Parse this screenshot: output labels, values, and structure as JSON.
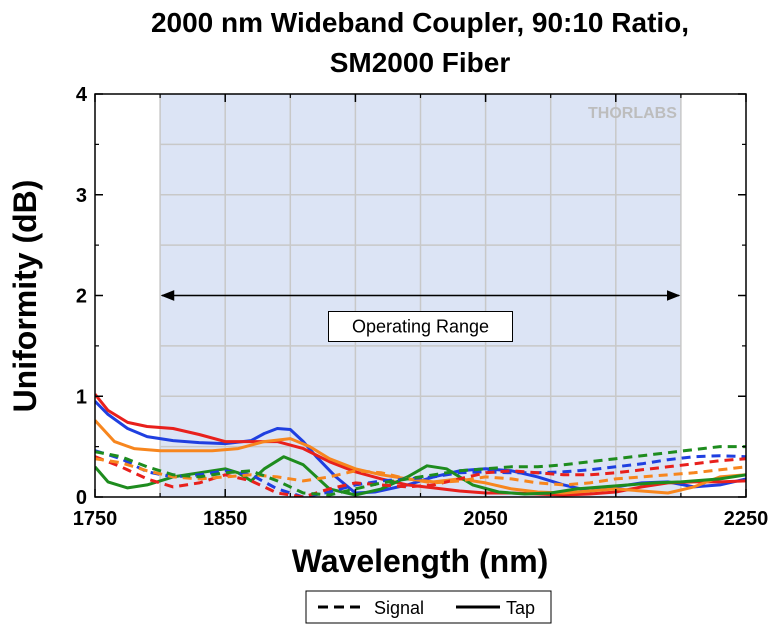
{
  "chart_data": {
    "type": "line",
    "title_lines": [
      "2000 nm Wideband Coupler, 90:10 Ratio,",
      "SM2000 Fiber"
    ],
    "xlabel": "Wavelength (nm)",
    "ylabel": "Uniformity (dB)",
    "xlim": [
      1750,
      2250
    ],
    "ylim": [
      0,
      4
    ],
    "xticks": [
      1750,
      1850,
      1950,
      2050,
      2150,
      2250
    ],
    "yticks": [
      0,
      1,
      2,
      3,
      4
    ],
    "grid": true,
    "watermark": "THORLABS",
    "operating_range": {
      "x": [
        1800,
        2200
      ],
      "label": "Operating Range",
      "arrow_y": 2.0
    },
    "legend": {
      "placement": "bottom-center",
      "entries": [
        {
          "label": "Signal",
          "style": "dashed"
        },
        {
          "label": "Tap",
          "style": "solid"
        }
      ]
    },
    "colors": {
      "shade": "#dce4f5",
      "grid": "#c8c8c8",
      "blue": "#1f3fe0",
      "red": "#e8201c",
      "orange": "#f7861e",
      "green": "#1e8c1e"
    },
    "series": [
      {
        "color": "blue",
        "style": "solid",
        "x": [
          1750,
          1760,
          1775,
          1790,
          1810,
          1830,
          1850,
          1870,
          1880,
          1890,
          1900,
          1910,
          1920,
          1935,
          1950,
          1965,
          1990,
          2010,
          2030,
          2050,
          2070,
          2090,
          2110,
          2130,
          2150,
          2170,
          2190,
          2210,
          2230,
          2250
        ],
        "y": [
          0.95,
          0.82,
          0.68,
          0.6,
          0.56,
          0.54,
          0.53,
          0.56,
          0.63,
          0.68,
          0.67,
          0.55,
          0.4,
          0.2,
          0.04,
          0.05,
          0.12,
          0.2,
          0.26,
          0.28,
          0.26,
          0.2,
          0.12,
          0.06,
          0.1,
          0.14,
          0.15,
          0.1,
          0.12,
          0.18
        ]
      },
      {
        "color": "red",
        "style": "solid",
        "x": [
          1750,
          1760,
          1775,
          1790,
          1810,
          1830,
          1850,
          1870,
          1890,
          1910,
          1930,
          1950,
          1970,
          1990,
          2010,
          2030,
          2050,
          2070,
          2090,
          2110,
          2130,
          2150,
          2170,
          2190,
          2210,
          2230,
          2250
        ],
        "y": [
          1.02,
          0.86,
          0.74,
          0.7,
          0.68,
          0.62,
          0.55,
          0.55,
          0.55,
          0.48,
          0.35,
          0.25,
          0.18,
          0.12,
          0.09,
          0.06,
          0.04,
          0.04,
          0.03,
          0.02,
          0.03,
          0.05,
          0.1,
          0.14,
          0.15,
          0.15,
          0.16
        ]
      },
      {
        "color": "orange",
        "style": "solid",
        "x": [
          1750,
          1765,
          1780,
          1800,
          1820,
          1840,
          1860,
          1880,
          1900,
          1915,
          1930,
          1950,
          1970,
          1990,
          2010,
          2030,
          2050,
          2070,
          2090,
          2110,
          2130,
          2150,
          2170,
          2190,
          2210,
          2230,
          2250
        ],
        "y": [
          0.76,
          0.55,
          0.48,
          0.46,
          0.46,
          0.46,
          0.48,
          0.55,
          0.58,
          0.5,
          0.38,
          0.28,
          0.22,
          0.18,
          0.15,
          0.18,
          0.14,
          0.08,
          0.05,
          0.04,
          0.06,
          0.08,
          0.06,
          0.04,
          0.1,
          0.2,
          0.22
        ]
      },
      {
        "color": "green",
        "style": "solid",
        "x": [
          1750,
          1760,
          1775,
          1790,
          1810,
          1830,
          1850,
          1860,
          1870,
          1880,
          1895,
          1910,
          1930,
          1950,
          1970,
          1990,
          2005,
          2020,
          2040,
          2060,
          2080,
          2100,
          2120,
          2140,
          2160,
          2180,
          2200,
          2230,
          2250
        ],
        "y": [
          0.3,
          0.15,
          0.09,
          0.12,
          0.2,
          0.24,
          0.28,
          0.24,
          0.16,
          0.28,
          0.4,
          0.32,
          0.08,
          0.02,
          0.08,
          0.2,
          0.31,
          0.28,
          0.12,
          0.05,
          0.03,
          0.04,
          0.08,
          0.1,
          0.12,
          0.14,
          0.15,
          0.18,
          0.22
        ]
      },
      {
        "color": "blue",
        "style": "dashed",
        "x": [
          1750,
          1770,
          1790,
          1810,
          1830,
          1850,
          1870,
          1890,
          1910,
          1930,
          1950,
          1970,
          1990,
          2010,
          2030,
          2050,
          2070,
          2090,
          2110,
          2130,
          2150,
          2170,
          2190,
          2210,
          2230,
          2250
        ],
        "y": [
          0.46,
          0.38,
          0.25,
          0.2,
          0.22,
          0.26,
          0.22,
          0.08,
          0.0,
          0.05,
          0.12,
          0.16,
          0.18,
          0.2,
          0.24,
          0.25,
          0.24,
          0.24,
          0.25,
          0.27,
          0.3,
          0.33,
          0.37,
          0.4,
          0.41,
          0.4
        ]
      },
      {
        "color": "red",
        "style": "dashed",
        "x": [
          1750,
          1770,
          1790,
          1810,
          1830,
          1850,
          1870,
          1890,
          1910,
          1930,
          1950,
          1970,
          1990,
          2010,
          2030,
          2050,
          2070,
          2090,
          2110,
          2130,
          2150,
          2170,
          2190,
          2210,
          2230,
          2250
        ],
        "y": [
          0.4,
          0.3,
          0.18,
          0.1,
          0.14,
          0.22,
          0.16,
          0.04,
          0.0,
          0.08,
          0.14,
          0.12,
          0.1,
          0.12,
          0.18,
          0.24,
          0.26,
          0.24,
          0.22,
          0.22,
          0.24,
          0.27,
          0.3,
          0.33,
          0.36,
          0.38
        ]
      },
      {
        "color": "orange",
        "style": "dashed",
        "x": [
          1750,
          1770,
          1790,
          1810,
          1830,
          1850,
          1870,
          1890,
          1910,
          1930,
          1950,
          1970,
          1990,
          2010,
          2030,
          2050,
          2070,
          2090,
          2110,
          2130,
          2150,
          2170,
          2190,
          2210,
          2230,
          2250
        ],
        "y": [
          0.38,
          0.34,
          0.26,
          0.2,
          0.18,
          0.2,
          0.22,
          0.2,
          0.16,
          0.2,
          0.26,
          0.24,
          0.18,
          0.14,
          0.16,
          0.2,
          0.18,
          0.14,
          0.12,
          0.14,
          0.18,
          0.2,
          0.22,
          0.24,
          0.27,
          0.3
        ]
      },
      {
        "color": "green",
        "style": "dashed",
        "x": [
          1750,
          1770,
          1790,
          1810,
          1830,
          1850,
          1870,
          1890,
          1910,
          1930,
          1950,
          1970,
          1990,
          2010,
          2030,
          2050,
          2070,
          2090,
          2110,
          2130,
          2150,
          2170,
          2190,
          2210,
          2230,
          2250
        ],
        "y": [
          0.45,
          0.4,
          0.3,
          0.22,
          0.2,
          0.24,
          0.26,
          0.16,
          0.04,
          0.02,
          0.08,
          0.14,
          0.18,
          0.22,
          0.26,
          0.28,
          0.3,
          0.3,
          0.32,
          0.35,
          0.38,
          0.41,
          0.44,
          0.47,
          0.5,
          0.5
        ]
      }
    ]
  }
}
